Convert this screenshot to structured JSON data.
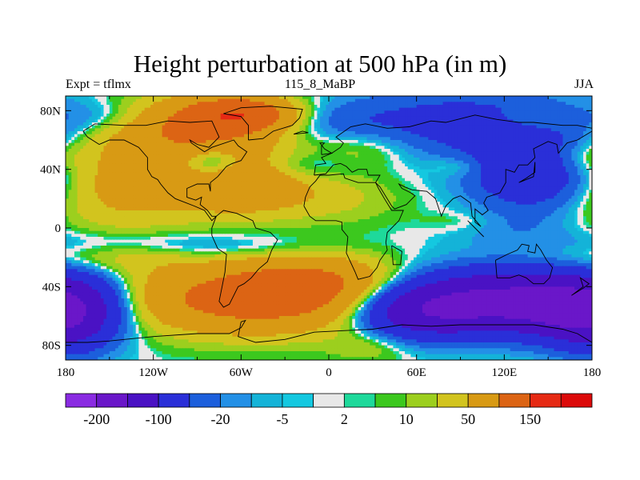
{
  "chart_data": {
    "type": "heatmap",
    "title": "Height perturbation at 500 hPa (in m)",
    "left_label": "Expt = tflmx",
    "center_label": "115_8_MaBP",
    "right_label": "JJA",
    "x_ticks": [
      {
        "value": -180,
        "label": "180"
      },
      {
        "value": -120,
        "label": "120W"
      },
      {
        "value": -60,
        "label": "60W"
      },
      {
        "value": 0,
        "label": "0"
      },
      {
        "value": 60,
        "label": "60E"
      },
      {
        "value": 120,
        "label": "120E"
      },
      {
        "value": 180,
        "label": "180"
      }
    ],
    "y_ticks": [
      {
        "value": 80,
        "label": "80N"
      },
      {
        "value": 40,
        "label": "40N"
      },
      {
        "value": 0,
        "label": "0"
      },
      {
        "value": -40,
        "label": "40S"
      },
      {
        "value": -80,
        "label": "80S"
      }
    ],
    "xlim": [
      -180,
      180
    ],
    "ylim": [
      -90,
      90
    ],
    "colorbar": {
      "colors": [
        "#8a2be2",
        "#6a17c9",
        "#4a12c4",
        "#2a2fd8",
        "#1c5fdc",
        "#2390e6",
        "#14b3d8",
        "#14c8e0",
        "#e8e8e8",
        "#1ed99b",
        "#3cc81e",
        "#9ccf1e",
        "#d2c41e",
        "#d89a14",
        "#dc6414",
        "#e62a14",
        "#dc0a0a"
      ],
      "tick_labels": [
        "-200",
        "-100",
        "-20",
        "-5",
        "2",
        "10",
        "50",
        "150"
      ]
    },
    "field_levels": [
      -200,
      -100,
      -50,
      -20,
      -10,
      -5,
      -2,
      -1,
      1,
      2,
      5,
      10,
      20,
      50,
      100,
      150,
      200
    ],
    "field_features": [
      {
        "lon": -150,
        "lat": 75,
        "amp": -12,
        "sx": 30,
        "sy": 8
      },
      {
        "lon": -90,
        "lat": 68,
        "amp": 55,
        "sx": 40,
        "sy": 14
      },
      {
        "lon": -60,
        "lat": 78,
        "amp": 70,
        "sx": 25,
        "sy": 8
      },
      {
        "lon": -80,
        "lat": 45,
        "amp": -32,
        "sx": 14,
        "sy": 7
      },
      {
        "lon": -140,
        "lat": 30,
        "amp": 28,
        "sx": 40,
        "sy": 22
      },
      {
        "lon": -60,
        "lat": 30,
        "amp": 40,
        "sx": 30,
        "sy": 14
      },
      {
        "lon": -20,
        "lat": 42,
        "amp": -10,
        "sx": 22,
        "sy": 6
      },
      {
        "lon": 0,
        "lat": 72,
        "amp": -10,
        "sx": 30,
        "sy": 9
      },
      {
        "lon": 25,
        "lat": 55,
        "amp": 12,
        "sx": 25,
        "sy": 10
      },
      {
        "lon": 0,
        "lat": 20,
        "amp": 12,
        "sx": 35,
        "sy": 12
      },
      {
        "lon": 90,
        "lat": 72,
        "amp": -28,
        "sx": 60,
        "sy": 16
      },
      {
        "lon": 140,
        "lat": 38,
        "amp": -45,
        "sx": 30,
        "sy": 18
      },
      {
        "lon": 90,
        "lat": 42,
        "amp": 10,
        "sx": 14,
        "sy": 5
      },
      {
        "lon": 140,
        "lat": 74,
        "amp": 12,
        "sx": 22,
        "sy": 6
      },
      {
        "lon": 170,
        "lat": 48,
        "amp": 12,
        "sx": 18,
        "sy": 8
      },
      {
        "lon": -130,
        "lat": -10,
        "amp": -9,
        "sx": 70,
        "sy": 6
      },
      {
        "lon": -60,
        "lat": -15,
        "amp": -6,
        "sx": 50,
        "sy": 5
      },
      {
        "lon": 130,
        "lat": 0,
        "amp": -6,
        "sx": 30,
        "sy": 8
      },
      {
        "lon": 90,
        "lat": 5,
        "amp": 5,
        "sx": 18,
        "sy": 5
      },
      {
        "lon": -150,
        "lat": -20,
        "amp": 12,
        "sx": 35,
        "sy": 8
      },
      {
        "lon": -50,
        "lat": -48,
        "amp": 70,
        "sx": 60,
        "sy": 16
      },
      {
        "lon": -10,
        "lat": -35,
        "amp": 30,
        "sx": 35,
        "sy": 12
      },
      {
        "lon": -165,
        "lat": -55,
        "amp": -35,
        "sx": 22,
        "sy": 18
      },
      {
        "lon": -180,
        "lat": -65,
        "amp": -30,
        "sx": 18,
        "sy": 14
      },
      {
        "lon": 115,
        "lat": -50,
        "amp": -110,
        "sx": 45,
        "sy": 14
      },
      {
        "lon": 60,
        "lat": -58,
        "amp": -60,
        "sx": 30,
        "sy": 12
      },
      {
        "lon": 165,
        "lat": -55,
        "amp": -70,
        "sx": 25,
        "sy": 14
      },
      {
        "lon": 30,
        "lat": -80,
        "amp": 10,
        "sx": 20,
        "sy": 8
      }
    ],
    "coastlines": [
      [
        [
          -168,
          66
        ],
        [
          -160,
          71
        ],
        [
          -140,
          70
        ],
        [
          -125,
          70
        ],
        [
          -110,
          73
        ],
        [
          -95,
          72
        ],
        [
          -80,
          73
        ],
        [
          -75,
          62
        ],
        [
          -82,
          55
        ],
        [
          -90,
          57
        ],
        [
          -95,
          60
        ],
        [
          -94,
          58
        ],
        [
          -85,
          52
        ],
        [
          -80,
          55
        ],
        [
          -65,
          60
        ],
        [
          -62,
          56
        ],
        [
          -56,
          52
        ],
        [
          -60,
          46
        ],
        [
          -66,
          44
        ],
        [
          -70,
          42
        ],
        [
          -76,
          35
        ],
        [
          -81,
          31
        ],
        [
          -81,
          25
        ],
        [
          -82,
          30
        ],
        [
          -90,
          30
        ],
        [
          -97,
          27
        ],
        [
          -97,
          21
        ],
        [
          -91,
          19
        ],
        [
          -87,
          21
        ],
        [
          -88,
          16
        ],
        [
          -83,
          12
        ],
        [
          -80,
          8
        ],
        [
          -77,
          8
        ],
        [
          -80,
          5
        ],
        [
          -85,
          12
        ],
        [
          -92,
          15
        ],
        [
          -105,
          20
        ],
        [
          -110,
          24
        ],
        [
          -115,
          30
        ],
        [
          -117,
          33
        ],
        [
          -121,
          35
        ],
        [
          -124,
          40
        ],
        [
          -124,
          48
        ],
        [
          -130,
          55
        ],
        [
          -140,
          60
        ],
        [
          -150,
          60
        ],
        [
          -157,
          57
        ],
        [
          -165,
          62
        ],
        [
          -168,
          66
        ]
      ],
      [
        [
          -77,
          8
        ],
        [
          -72,
          12
        ],
        [
          -63,
          10
        ],
        [
          -52,
          5
        ],
        [
          -50,
          0
        ],
        [
          -40,
          -3
        ],
        [
          -35,
          -8
        ],
        [
          -39,
          -15
        ],
        [
          -42,
          -23
        ],
        [
          -48,
          -28
        ],
        [
          -53,
          -34
        ],
        [
          -58,
          -38
        ],
        [
          -62,
          -40
        ],
        [
          -65,
          -46
        ],
        [
          -68,
          -52
        ],
        [
          -72,
          -54
        ],
        [
          -75,
          -50
        ],
        [
          -73,
          -40
        ],
        [
          -71,
          -30
        ],
        [
          -70,
          -18
        ],
        [
          -76,
          -14
        ],
        [
          -80,
          -5
        ],
        [
          -80,
          0
        ],
        [
          -77,
          8
        ]
      ],
      [
        [
          -55,
          60
        ],
        [
          -45,
          61
        ],
        [
          -38,
          66
        ],
        [
          -25,
          70
        ],
        [
          -20,
          75
        ],
        [
          -18,
          81
        ],
        [
          -40,
          83
        ],
        [
          -60,
          82
        ],
        [
          -72,
          78
        ],
        [
          -60,
          76
        ],
        [
          -55,
          70
        ],
        [
          -55,
          60
        ]
      ],
      [
        [
          -10,
          36
        ],
        [
          -9,
          43
        ],
        [
          -2,
          44
        ],
        [
          -5,
          48
        ],
        [
          2,
          51
        ],
        [
          8,
          55
        ],
        [
          10,
          58
        ],
        [
          5,
          62
        ],
        [
          15,
          69
        ],
        [
          25,
          71
        ],
        [
          40,
          68
        ],
        [
          55,
          69
        ],
        [
          70,
          73
        ],
        [
          80,
          72
        ],
        [
          100,
          77
        ],
        [
          115,
          74
        ],
        [
          130,
          72
        ],
        [
          140,
          72
        ],
        [
          160,
          70
        ],
        [
          170,
          70
        ],
        [
          180,
          68
        ],
        [
          180,
          66
        ],
        [
          170,
          60
        ],
        [
          163,
          58
        ],
        [
          157,
          51
        ],
        [
          156,
          57
        ],
        [
          150,
          59
        ],
        [
          140,
          54
        ],
        [
          141,
          48
        ],
        [
          136,
          43
        ],
        [
          130,
          43
        ],
        [
          127,
          38
        ],
        [
          121,
          40
        ],
        [
          121,
          31
        ],
        [
          117,
          24
        ],
        [
          108,
          21
        ],
        [
          106,
          17
        ],
        [
          109,
          12
        ],
        [
          105,
          9
        ],
        [
          100,
          13
        ],
        [
          100,
          4
        ],
        [
          104,
          1
        ],
        [
          98,
          8
        ],
        [
          97,
          17
        ],
        [
          90,
          22
        ],
        [
          85,
          20
        ],
        [
          80,
          15
        ],
        [
          77,
          8
        ],
        [
          73,
          20
        ],
        [
          67,
          25
        ],
        [
          57,
          26
        ],
        [
          52,
          28
        ],
        [
          48,
          30
        ],
        [
          50,
          27
        ],
        [
          56,
          24
        ],
        [
          59,
          22
        ],
        [
          53,
          16
        ],
        [
          45,
          13
        ],
        [
          43,
          15
        ],
        [
          35,
          28
        ],
        [
          32,
          31
        ],
        [
          35,
          36
        ],
        [
          27,
          36
        ],
        [
          26,
          40
        ],
        [
          20,
          40
        ],
        [
          16,
          38
        ],
        [
          12,
          42
        ],
        [
          8,
          44
        ],
        [
          3,
          43
        ],
        [
          -2,
          37
        ],
        [
          -10,
          36
        ]
      ],
      [
        [
          -17,
          15
        ],
        [
          -16,
          21
        ],
        [
          -13,
          28
        ],
        [
          -9,
          32
        ],
        [
          -6,
          36
        ],
        [
          0,
          36
        ],
        [
          10,
          37
        ],
        [
          11,
          34
        ],
        [
          20,
          31
        ],
        [
          30,
          31
        ],
        [
          32,
          31
        ],
        [
          34,
          27
        ],
        [
          38,
          20
        ],
        [
          43,
          12
        ],
        [
          51,
          12
        ],
        [
          48,
          5
        ],
        [
          40,
          -3
        ],
        [
          39,
          -10
        ],
        [
          40,
          -15
        ],
        [
          35,
          -22
        ],
        [
          33,
          -27
        ],
        [
          28,
          -33
        ],
        [
          20,
          -35
        ],
        [
          18,
          -30
        ],
        [
          12,
          -17
        ],
        [
          13,
          -6
        ],
        [
          9,
          -1
        ],
        [
          9,
          4
        ],
        [
          5,
          5
        ],
        [
          -4,
          5
        ],
        [
          -9,
          5
        ],
        [
          -13,
          8
        ],
        [
          -17,
          15
        ]
      ],
      [
        [
          114,
          -22
        ],
        [
          122,
          -18
        ],
        [
          129,
          -15
        ],
        [
          132,
          -11
        ],
        [
          137,
          -12
        ],
        [
          136,
          -16
        ],
        [
          141,
          -17
        ],
        [
          142,
          -11
        ],
        [
          145,
          -15
        ],
        [
          149,
          -22
        ],
        [
          153,
          -27
        ],
        [
          151,
          -34
        ],
        [
          147,
          -38
        ],
        [
          140,
          -38
        ],
        [
          135,
          -34
        ],
        [
          130,
          -32
        ],
        [
          124,
          -34
        ],
        [
          115,
          -34
        ],
        [
          114,
          -22
        ]
      ],
      [
        [
          -60,
          -64
        ],
        [
          -57,
          -63
        ],
        [
          -60,
          -68
        ],
        [
          -68,
          -72
        ],
        [
          -90,
          -72
        ],
        [
          -120,
          -74
        ],
        [
          -150,
          -77
        ],
        [
          -165,
          -78
        ],
        [
          -180,
          -78
        ],
        [
          -180,
          -90
        ],
        [
          180,
          -90
        ],
        [
          180,
          -78
        ],
        [
          170,
          -72
        ],
        [
          160,
          -69
        ],
        [
          140,
          -66
        ],
        [
          110,
          -66
        ],
        [
          90,
          -66
        ],
        [
          70,
          -67
        ],
        [
          50,
          -66
        ],
        [
          30,
          -69
        ],
        [
          10,
          -70
        ],
        [
          -10,
          -71
        ],
        [
          -30,
          -76
        ],
        [
          -50,
          -78
        ],
        [
          -62,
          -74
        ],
        [
          -60,
          -64
        ]
      ],
      [
        [
          -5,
          50
        ],
        [
          2,
          51
        ],
        [
          -3,
          54
        ],
        [
          -6,
          58
        ],
        [
          -3,
          58
        ],
        [
          -5,
          56
        ],
        [
          -5,
          50
        ]
      ],
      [
        [
          130,
          31
        ],
        [
          135,
          34
        ],
        [
          141,
          38
        ],
        [
          141,
          45
        ],
        [
          140,
          35
        ],
        [
          130,
          31
        ]
      ],
      [
        [
          95,
          5
        ],
        [
          106,
          -6
        ],
        [
          100,
          0
        ],
        [
          95,
          5
        ]
      ],
      [
        [
          43,
          -12
        ],
        [
          50,
          -16
        ],
        [
          49,
          -25
        ],
        [
          44,
          -25
        ],
        [
          43,
          -12
        ]
      ],
      [
        [
          -24,
          64
        ],
        [
          -14,
          65
        ],
        [
          -18,
          66
        ],
        [
          -24,
          64
        ]
      ],
      [
        [
          166,
          -46
        ],
        [
          174,
          -41
        ],
        [
          178,
          -38
        ],
        [
          172,
          -34
        ],
        [
          174,
          -40
        ],
        [
          166,
          -46
        ]
      ]
    ]
  }
}
